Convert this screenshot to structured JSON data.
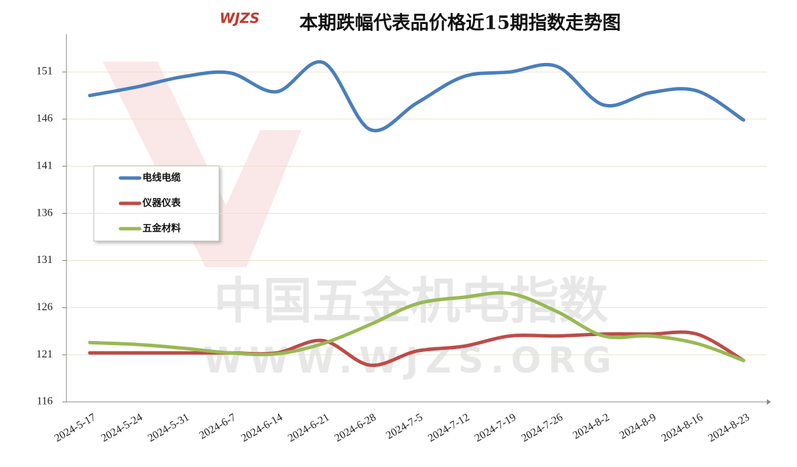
{
  "chart_data": {
    "type": "line",
    "title": "本期跌幅代表品价格近15期指数走势图",
    "logo": "WJZS",
    "watermark": [
      "中国五金机电指数",
      "WWW.WJZS.ORG"
    ],
    "categories": [
      "2024-5-17",
      "2024-5-24",
      "2024-5-31",
      "2024-6-7",
      "2024-6-14",
      "2024-6-21",
      "2024-6-28",
      "2024-7-5",
      "2024-7-12",
      "2024-7-19",
      "2024-7-26",
      "2024-8-2",
      "2024-8-9",
      "2024-8-16",
      "2024-8-23"
    ],
    "series": [
      {
        "name": "电线电缆",
        "color": "#4a7ebb",
        "values": [
          148.5,
          149.4,
          150.5,
          150.9,
          148.9,
          152.0,
          144.9,
          147.7,
          150.5,
          151.0,
          151.6,
          147.5,
          148.8,
          149.0,
          145.9
        ]
      },
      {
        "name": "仪器仪表",
        "color": "#be4b48",
        "values": [
          121.2,
          121.2,
          121.2,
          121.2,
          121.2,
          122.5,
          119.9,
          121.4,
          121.9,
          123.0,
          123.0,
          123.2,
          123.2,
          123.2,
          120.4
        ]
      },
      {
        "name": "五金材料",
        "color": "#98b954",
        "values": [
          122.3,
          122.1,
          121.7,
          121.2,
          121.1,
          122.2,
          124.2,
          126.4,
          127.1,
          127.5,
          125.6,
          123.0,
          123.0,
          122.2,
          120.4
        ]
      }
    ],
    "ylim": [
      116,
      155
    ],
    "yticks": [
      116,
      121,
      126,
      131,
      136,
      141,
      146,
      151
    ],
    "grid": true,
    "smooth": true
  }
}
